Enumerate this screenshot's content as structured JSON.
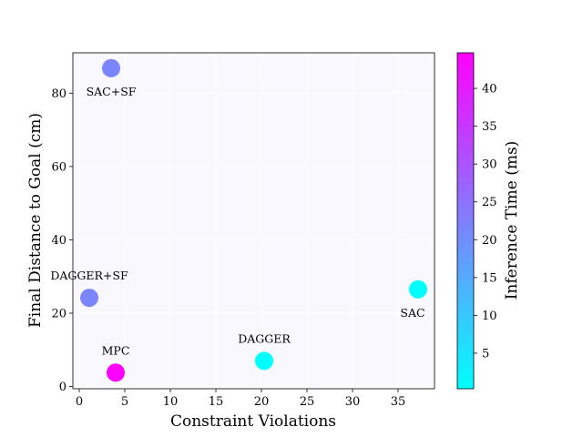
{
  "chart_data": {
    "type": "scatter",
    "xlabel": "Constraint Violations",
    "ylabel": "Final Distance to Goal (cm)",
    "xlim": [
      -0.7,
      39
    ],
    "ylim": [
      -0.6,
      91
    ],
    "xticks": [
      0,
      5,
      10,
      15,
      20,
      25,
      30,
      35
    ],
    "yticks": [
      0,
      20,
      40,
      60,
      80
    ],
    "grid": true,
    "colorbar": {
      "label": "Inference Time (ms)",
      "range": [
        0.3,
        44.7
      ],
      "ticks": [
        5,
        10,
        15,
        20,
        25,
        30,
        35,
        40
      ],
      "color_low": "#00ffff",
      "color_high": "#ff00ff"
    },
    "points": [
      {
        "label": "SAC+SF",
        "x": 3.5,
        "y": 86.8,
        "inference_ms": 21.5
      },
      {
        "label": "DAGGER+SF",
        "x": 1.1,
        "y": 24.2,
        "inference_ms": 21.5
      },
      {
        "label": "MPC",
        "x": 4.0,
        "y": 3.8,
        "inference_ms": 44.7
      },
      {
        "label": "DAGGER",
        "x": 20.3,
        "y": 7.0,
        "inference_ms": 0.3
      },
      {
        "label": "SAC",
        "x": 37.2,
        "y": 26.5,
        "inference_ms": 0.3
      }
    ]
  }
}
